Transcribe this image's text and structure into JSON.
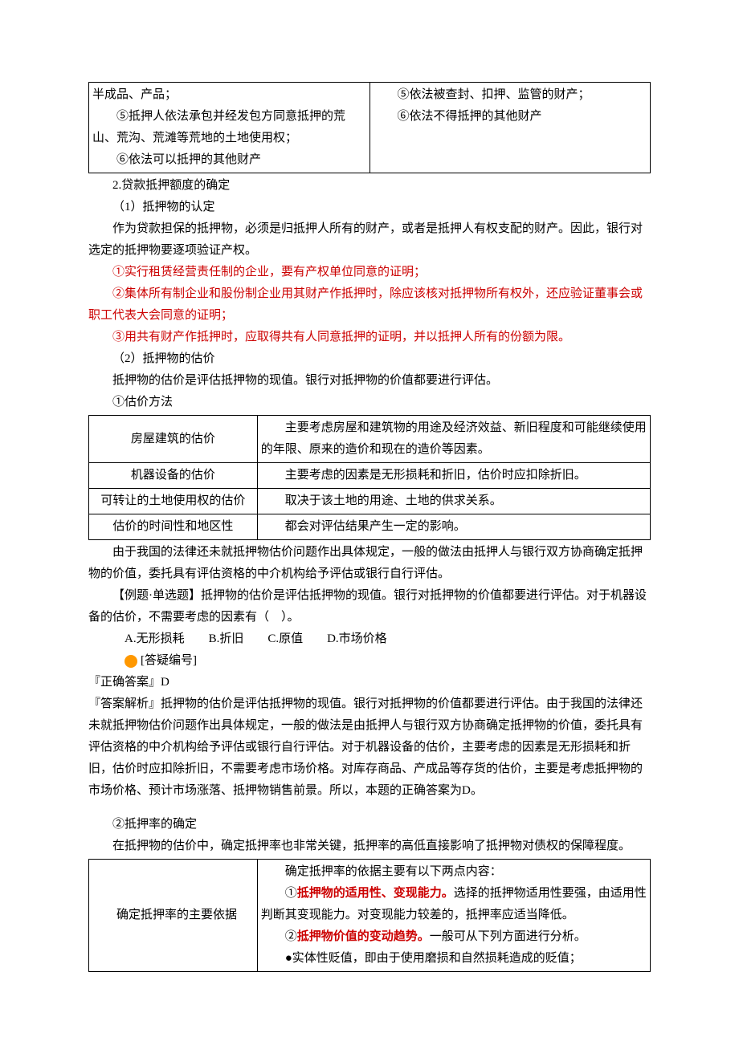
{
  "tableTop": {
    "leftLines": [
      "半成品、产品；",
      "　　⑤抵押人依法承包并经发包方同意抵押的荒山、荒沟、荒滩等荒地的土地使用权；",
      "　　⑥依法可以抵押的其他财产"
    ],
    "rightLines": [
      "　　⑤依法被查封、扣押、监管的财产；",
      "　　⑥依法不得抵押的其他财产"
    ]
  },
  "p1": "2.贷款抵押额度的确定",
  "p2": "（1）抵押物的认定",
  "p3": "作为贷款担保的抵押物，必须是归抵押人所有的财产，或者是抵押人有权支配的财产。因此，银行对选定的抵押物要逐项验证产权。",
  "red1": "①实行租赁经营责任制的企业，要有产权单位同意的证明；",
  "red2": "②集体所有制企业和股份制企业用其财产作抵押时，除应该核对抵押物所有权外，还应验证董事会或职工代表大会同意的证明；",
  "red3": "③用共有财产作抵押时，应取得共有人同意抵押的证明，并以抵押人所有的份额为限。",
  "p4": "（2）抵押物的估价",
  "p5": "抵押物的估价是评估抵押物的现值。银行对抵押物的价值都要进行评估。",
  "p6": "①估价方法",
  "valTable": {
    "rows": [
      [
        "房屋建筑的估价",
        "　　主要考虑房屋和建筑物的用途及经济效益、新旧程度和可能继续使用的年限、原来的造价和现在的造价等因素。"
      ],
      [
        "机器设备的估价",
        "　　主要考虑的因素是无形损耗和折旧，估价时应扣除折旧。"
      ],
      [
        "可转让的土地使用权的估价",
        "　　取决于该土地的用途、土地的供求关系。"
      ],
      [
        "估价的时间性和地区性",
        "　　都会对评估结果产生一定的影响。"
      ]
    ]
  },
  "p7": "由于我国的法律还未就抵押物估价问题作出具体规定，一般的做法由抵押人与银行双方协商确定抵押物的价值，委托具有评估资格的中介机构给予评估或银行自行评估。",
  "ex_title": "【例题·单选题】抵押物的估价是评估抵押物的现值。银行对抵押物的价值都要进行评估。对于机器设备的估价，不需要考虑的因素有（　）。",
  "ex_opts": "A.无形损耗　　B.折旧　　C.原值　　D.市场价格",
  "q_label": "[答疑编号]",
  "ans_label": "『正确答案』D",
  "ans_expl": "『答案解析』抵押物的估价是评估抵押物的现值。银行对抵押物的价值都要进行评估。由于我国的法律还未就抵押物估价问题作出具体规定，一般的做法是由抵押人与银行双方协商确定抵押物的价值，委托具有评估资格的中介机构给予评估或银行自行评估。对于机器设备的估价，主要考虑的因素是无形损耗和折旧，估价时应扣除折旧，不需要考虑市场价格。对库存商品、产成品等存货的估价，主要是考虑抵押物的市场价格、预计市场涨落、抵押物销售前景。所以，本题的正确答案为D。",
  "p8": "②抵押率的确定",
  "p9": "在抵押物的估价中，确定抵押率也非常关键，抵押率的高低直接影响了抵押物对债权的保障程度。",
  "rateTable": {
    "left": "　　确定抵押率的主要依据",
    "r_intro": "　　确定抵押率的依据主要有以下两点内容：",
    "r1a": "　　①",
    "r1b": "抵押物的适用性、变现能力。",
    "r1c": "选择的抵押物适用性要强，由适用性判断其变现能力。对变现能力较差的，抵押率应适当降低。",
    "r2a": "　　②",
    "r2b": "抵押物价值的变动趋势。",
    "r2c": "一般可从下列方面进行分析。",
    "r3": "　　●实体性贬值，即由于使用磨损和自然损耗造成的贬值；"
  }
}
